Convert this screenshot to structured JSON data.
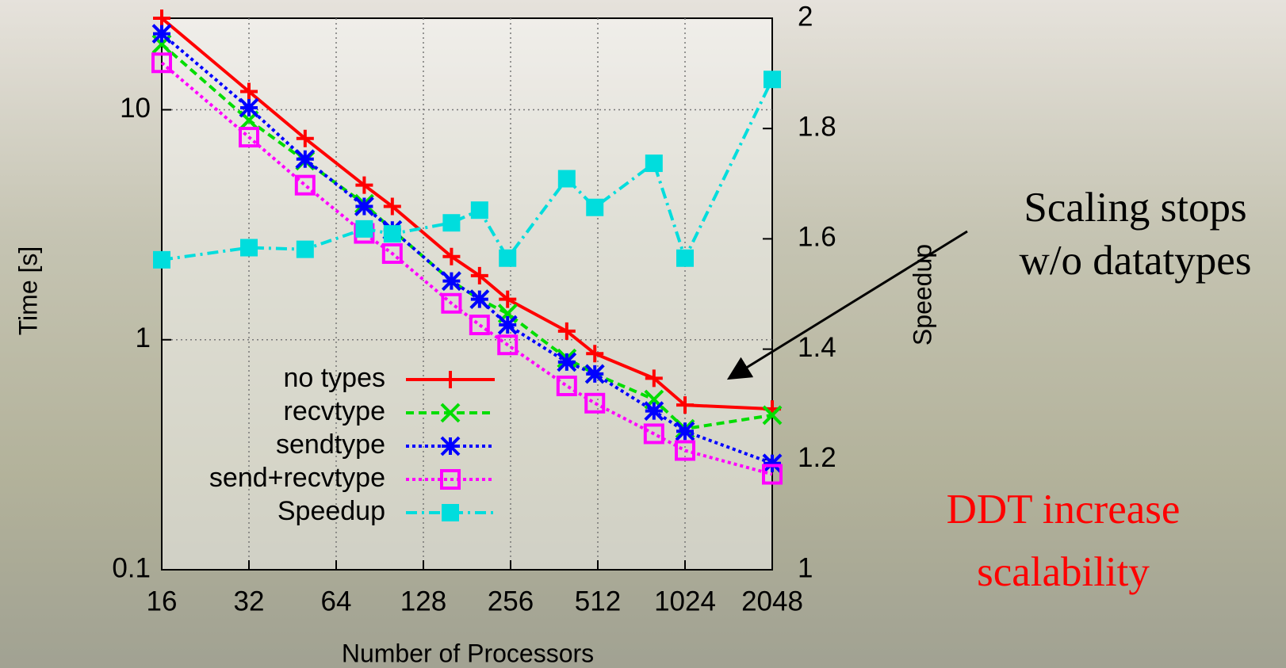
{
  "chart_data": {
    "type": "line",
    "x_label": "Number of Processors",
    "y_label": "Time [s]",
    "y2_label": "Speedup",
    "x": [
      16,
      32,
      50,
      80,
      100,
      160,
      200,
      250,
      400,
      500,
      800,
      1024,
      2048
    ],
    "xlim": [
      16,
      2048
    ],
    "xticks": [
      16,
      32,
      64,
      128,
      256,
      512,
      1024,
      2048
    ],
    "xlog": true,
    "ylim": [
      0.1,
      25
    ],
    "yticks": [
      0.1,
      1,
      10
    ],
    "ylog": true,
    "y2lim": [
      1,
      2
    ],
    "y2ticks": [
      1,
      1.2,
      1.4,
      1.6,
      1.8,
      2
    ],
    "grid": true,
    "legend": "lower left",
    "series": [
      {
        "name": "no types",
        "color": "#ff0000",
        "marker": "plus",
        "dash": "solid",
        "values": [
          25,
          12,
          7.5,
          4.7,
          3.8,
          2.3,
          1.9,
          1.5,
          1.09,
          0.87,
          0.68,
          0.52,
          0.5
        ]
      },
      {
        "name": "recvtype",
        "color": "#00dd00",
        "marker": "x",
        "dash": "dashed",
        "values": [
          19.3,
          9.0,
          6.0,
          3.9,
          3.0,
          1.8,
          1.5,
          1.3,
          0.83,
          0.71,
          0.55,
          0.41,
          0.47
        ]
      },
      {
        "name": "sendtype",
        "color": "#0000ff",
        "marker": "star",
        "dash": "dotted",
        "values": [
          21.4,
          10.2,
          6.1,
          3.8,
          3.0,
          1.8,
          1.5,
          1.16,
          0.8,
          0.71,
          0.49,
          0.4,
          0.29
        ]
      },
      {
        "name": "send+recvtype",
        "color": "#ff00ff",
        "marker": "square-open",
        "dash": "dotted",
        "values": [
          16,
          7.6,
          4.7,
          2.9,
          2.37,
          1.44,
          1.16,
          0.95,
          0.63,
          0.53,
          0.39,
          0.33,
          0.26
        ]
      },
      {
        "name": "Speedup",
        "color": "#00dddd",
        "marker": "square",
        "dash": "dashdot",
        "axis": "y2",
        "values": [
          1.562,
          1.584,
          1.581,
          1.618,
          1.609,
          1.629,
          1.652,
          1.565,
          1.709,
          1.657,
          1.737,
          1.565,
          1.889
        ]
      }
    ],
    "annotations": [
      {
        "lines": [
          "Scaling stops",
          "w/o datatypes"
        ],
        "color": "#000000"
      },
      {
        "lines": [
          "DDT increase",
          "scalability"
        ],
        "color": "#ff0000"
      }
    ]
  }
}
